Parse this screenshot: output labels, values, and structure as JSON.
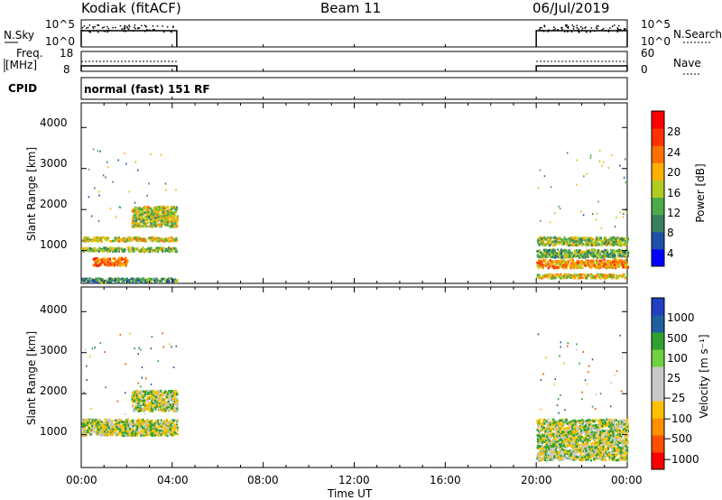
{
  "header": {
    "station": "Kodiak (fitACF)",
    "beam": "Beam 11",
    "date": "06/Jul/2019"
  },
  "top_panels": {
    "nsky_label": "N.Sky",
    "nsky_ticks": [
      "10^5",
      "10^0"
    ],
    "nsearch_label": "N.Search",
    "nsearch_ticks": [
      "10^5",
      "10^0"
    ],
    "freq_label_line1": "Freq.",
    "freq_label_line2": "[MHz]",
    "freq_ticks": [
      "18",
      "8"
    ],
    "nave_label": "Nave",
    "nave_ticks": [
      "60",
      "0"
    ],
    "cpid_label": "CPID",
    "cpid_text": "normal (fast) 151 RF"
  },
  "chart_data": [
    {
      "type": "heatmap",
      "name": "power",
      "ylabel": "Slant Range [km]",
      "yticks": [
        "1000",
        "2000",
        "3000",
        "4000"
      ],
      "ylim": [
        200,
        4600
      ],
      "xlim": [
        0,
        24
      ],
      "colorbar_label": "Power [dB]",
      "colorbar_ticks": [
        "4",
        "8",
        "12",
        "16",
        "20",
        "24",
        "28"
      ],
      "colorbar_colors": [
        "#0000ff",
        "#1f4fa8",
        "#3a8060",
        "#4caa4c",
        "#b0cc20",
        "#ffb000",
        "#ff7000",
        "#ff3000",
        "#ff0000"
      ],
      "data_intervals_hours": [
        [
          0,
          4.2
        ],
        [
          20,
          24
        ]
      ],
      "echo_bands": [
        {
          "t0": 0,
          "t1": 4.2,
          "r0": 1000,
          "r1": 1100,
          "dB": 16
        },
        {
          "t0": 0,
          "t1": 4.2,
          "r0": 1250,
          "r1": 1350,
          "dB": 20
        },
        {
          "t0": 2.2,
          "t1": 4.2,
          "r0": 1600,
          "r1": 2100,
          "dB": 18
        },
        {
          "t0": 0.5,
          "t1": 2.0,
          "r0": 650,
          "r1": 850,
          "dB": 26
        },
        {
          "t0": 0,
          "t1": 4.2,
          "r0": 250,
          "r1": 350,
          "dB": 12
        },
        {
          "t0": 20,
          "t1": 24,
          "r0": 1150,
          "r1": 1350,
          "dB": 16
        },
        {
          "t0": 20,
          "t1": 24,
          "r0": 850,
          "r1": 1050,
          "dB": 14
        },
        {
          "t0": 20,
          "t1": 24,
          "r0": 600,
          "r1": 800,
          "dB": 24
        },
        {
          "t0": 20,
          "t1": 24,
          "r0": 350,
          "r1": 450,
          "dB": 20
        }
      ]
    },
    {
      "type": "heatmap",
      "name": "velocity",
      "ylabel": "Slant Range [km]",
      "yticks": [
        "1000",
        "2000",
        "3000",
        "4000"
      ],
      "ylim": [
        200,
        4600
      ],
      "xlim": [
        0,
        24
      ],
      "colorbar_label": "Velocity  [m s⁻¹]",
      "colorbar_ticks": [
        "1000",
        "500",
        "100",
        "25",
        "−25",
        "−100",
        "−500",
        "−1000"
      ],
      "colorbar_colors": [
        "#2040c0",
        "#2060a0",
        "#30a030",
        "#70d040",
        "#c8c8c8",
        "#c8c8c8",
        "#ffc000",
        "#ff9000",
        "#ff5000",
        "#ff0000"
      ],
      "data_intervals_hours": [
        [
          0,
          4.2
        ],
        [
          20,
          24
        ]
      ],
      "echo_bands": [
        {
          "t0": 0,
          "t1": 4.2,
          "r0": 1000,
          "r1": 1400,
          "v": 0
        },
        {
          "t0": 2.2,
          "t1": 4.2,
          "r0": 1600,
          "r1": 2100,
          "v": 0
        },
        {
          "t0": 20,
          "t1": 24,
          "r0": 400,
          "r1": 1400,
          "v": 0
        }
      ]
    }
  ],
  "x_axis": {
    "ticks": [
      "00:00",
      "04:00",
      "08:00",
      "12:00",
      "16:00",
      "20:00",
      "00:00"
    ],
    "label": "Time UT"
  }
}
